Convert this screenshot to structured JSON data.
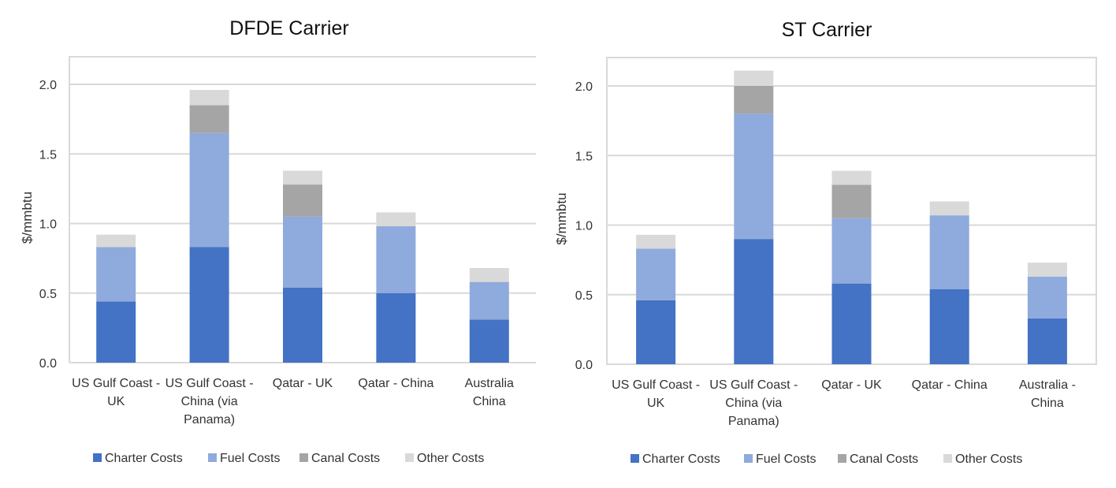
{
  "chart_data": [
    {
      "type": "bar",
      "stacked": true,
      "title": "DFDE Carrier",
      "xlabel": "",
      "ylabel": "$/mmbtu",
      "ylim": [
        0,
        2.2
      ],
      "yticks": [
        "0.0",
        "0.5",
        "1.0",
        "1.5",
        "2.0"
      ],
      "grid": true,
      "legend": "bottom",
      "categories": [
        [
          "US Gulf Coast -",
          "UK"
        ],
        [
          "US Gulf Coast -",
          "China (via",
          "Panama)"
        ],
        [
          "Qatar - UK"
        ],
        [
          "Qatar - China"
        ],
        [
          "Australia",
          "China"
        ]
      ],
      "series": [
        {
          "name": "Charter Costs",
          "color": "#4472c4",
          "values": [
            0.44,
            0.83,
            0.54,
            0.5,
            0.31
          ]
        },
        {
          "name": "Fuel Costs",
          "color": "#8faadc",
          "values": [
            0.39,
            0.82,
            0.51,
            0.48,
            0.27
          ]
        },
        {
          "name": "Canal Costs",
          "color": "#a5a5a5",
          "values": [
            0.0,
            0.2,
            0.23,
            0.0,
            0.0
          ]
        },
        {
          "name": "Other Costs",
          "color": "#d9d9d9",
          "values": [
            0.09,
            0.11,
            0.1,
            0.1,
            0.1
          ]
        }
      ]
    },
    {
      "type": "bar",
      "stacked": true,
      "title": "ST Carrier",
      "xlabel": "",
      "ylabel": "$/mmbtu",
      "ylim": [
        0,
        2.2
      ],
      "yticks": [
        "0.0",
        "0.5",
        "1.0",
        "1.5",
        "2.0"
      ],
      "grid": true,
      "legend": "bottom",
      "categories": [
        [
          "US Gulf Coast -",
          "UK"
        ],
        [
          "US Gulf Coast -",
          "China (via",
          "Panama)"
        ],
        [
          "Qatar - UK"
        ],
        [
          "Qatar - China"
        ],
        [
          "Australia -",
          "China"
        ]
      ],
      "series": [
        {
          "name": "Charter Costs",
          "color": "#4472c4",
          "values": [
            0.46,
            0.9,
            0.58,
            0.54,
            0.33
          ]
        },
        {
          "name": "Fuel Costs",
          "color": "#8faadc",
          "values": [
            0.37,
            0.9,
            0.47,
            0.53,
            0.3
          ]
        },
        {
          "name": "Canal Costs",
          "color": "#a5a5a5",
          "values": [
            0.0,
            0.2,
            0.24,
            0.0,
            0.0
          ]
        },
        {
          "name": "Other Costs",
          "color": "#d9d9d9",
          "values": [
            0.1,
            0.11,
            0.1,
            0.1,
            0.1
          ]
        }
      ]
    }
  ]
}
